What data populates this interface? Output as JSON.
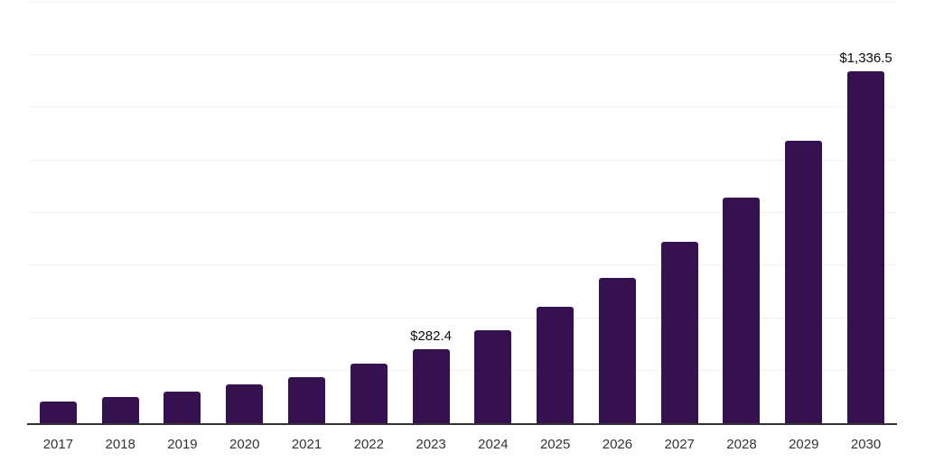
{
  "chart_data": {
    "type": "bar",
    "title": "",
    "xlabel": "",
    "ylabel": "",
    "categories": [
      "2017",
      "2018",
      "2019",
      "2020",
      "2021",
      "2022",
      "2023",
      "2024",
      "2025",
      "2026",
      "2027",
      "2028",
      "2029",
      "2030"
    ],
    "values": [
      81,
      98,
      120,
      146,
      176,
      225,
      282.4,
      353,
      441,
      550,
      687,
      858,
      1071,
      1336.5
    ],
    "annotations": [
      {
        "category": "2023",
        "text": "$282.4"
      },
      {
        "category": "2030",
        "text": "$1,336.5"
      }
    ],
    "ylim": [
      0,
      1600
    ],
    "gridline_step": 200,
    "grid": "horizontal-only",
    "legend": "none",
    "bar_color": "#351150",
    "axis_line_color": "#333333",
    "gridline_color": "#f0f0f1",
    "tick_label_color": "#333333",
    "value_label_color": "#0d0d0d"
  }
}
